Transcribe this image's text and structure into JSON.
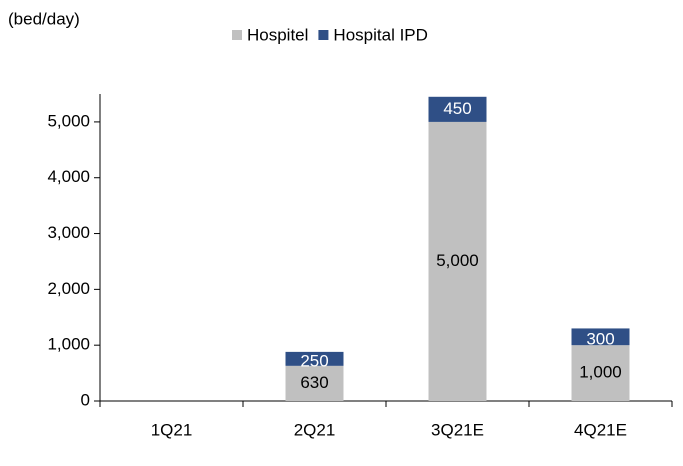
{
  "chart_data": {
    "type": "stacked_bar",
    "y_label": "(bed/day)",
    "categories": [
      "1Q21",
      "2Q21",
      "3Q21E",
      "4Q21E"
    ],
    "series": [
      {
        "name": "Hospitel",
        "color": "#c0c0c0",
        "label_color": "#000000",
        "values": [
          null,
          630,
          5000,
          1000
        ],
        "value_labels": [
          null,
          "630",
          "5,000",
          "1,000"
        ]
      },
      {
        "name": "Hospital IPD",
        "color": "#2f4f86",
        "label_color": "#ffffff",
        "values": [
          null,
          250,
          450,
          300
        ]
      }
    ],
    "ylim": [
      0,
      5500
    ],
    "yticks": [
      0,
      {
        "value": 1000,
        "label": "1,000"
      },
      {
        "value": 2000,
        "label": "2,000"
      },
      {
        "value": 3000,
        "label": "3,000"
      },
      {
        "value": 4000,
        "label": "4,000"
      },
      {
        "value": 5000,
        "label": "5,000"
      }
    ],
    "legend": "top"
  }
}
